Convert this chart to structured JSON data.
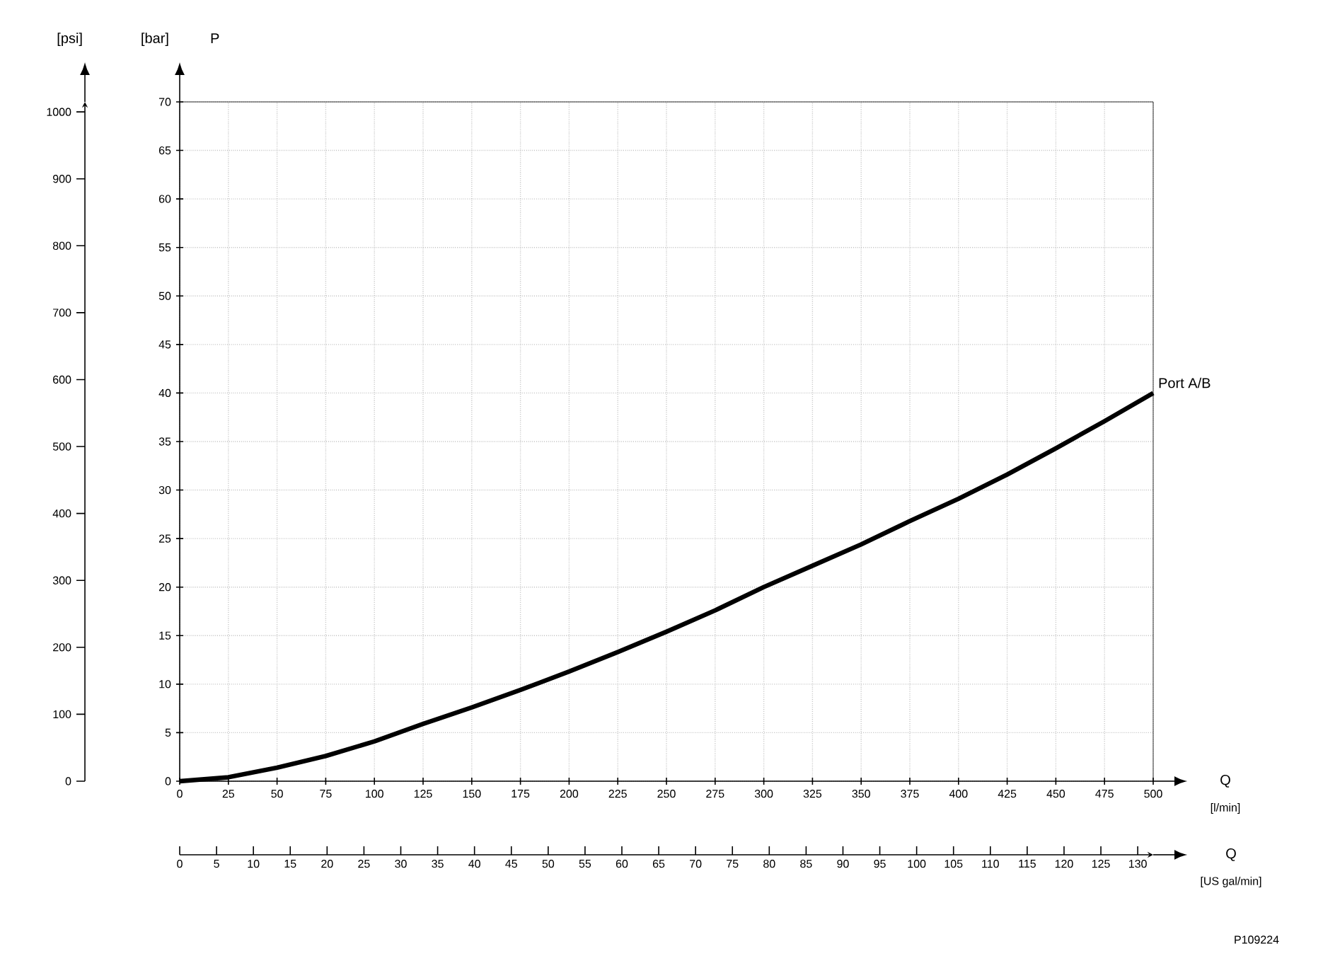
{
  "chart_data": {
    "type": "line",
    "xlabel": "[l/min]",
    "ylabel": "[bar]",
    "y2label": "[psi]",
    "x2label": "[US gal/min]",
    "annotations": [
      "P",
      "Q",
      "Q",
      "P109224"
    ],
    "x": [
      0,
      25,
      50,
      75,
      100,
      125,
      150,
      175,
      200,
      225,
      250,
      275,
      300,
      325,
      350,
      375,
      400,
      425,
      450,
      475,
      500
    ],
    "series": [
      {
        "name": "Port A/B",
        "color": "#000000",
        "values": [
          0,
          0.4,
          1.4,
          2.6,
          4.1,
          5.9,
          7.6,
          9.4,
          11.3,
          13.3,
          15.4,
          17.6,
          20.0,
          22.2,
          24.4,
          26.8,
          29.1,
          31.6,
          34.3,
          37.1,
          40.0
        ]
      }
    ],
    "xlim": [
      0,
      500
    ],
    "xticks": [
      0,
      25,
      50,
      75,
      100,
      125,
      150,
      175,
      200,
      225,
      250,
      275,
      300,
      325,
      350,
      375,
      400,
      425,
      450,
      475,
      500
    ],
    "ylim": [
      0,
      70
    ],
    "yticks": [
      0,
      5,
      10,
      15,
      20,
      25,
      30,
      35,
      40,
      45,
      50,
      55,
      60,
      65,
      70
    ],
    "y2lim": [
      0,
      1015
    ],
    "y2ticks": [
      0,
      100,
      200,
      300,
      400,
      500,
      600,
      700,
      800,
      900,
      1000
    ],
    "x2lim": [
      0,
      132.1
    ],
    "x2ticks": [
      0,
      5,
      10,
      15,
      20,
      25,
      30,
      35,
      40,
      45,
      50,
      55,
      60,
      65,
      70,
      75,
      80,
      85,
      90,
      95,
      100,
      105,
      110,
      115,
      120,
      125,
      130
    ],
    "grid": true
  }
}
